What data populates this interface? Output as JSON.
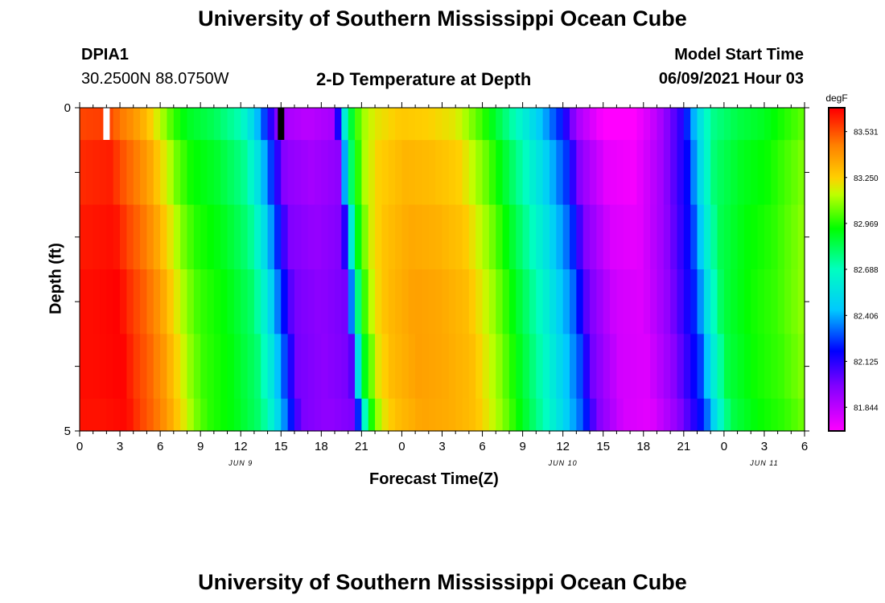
{
  "header": {
    "title": "University of Southern Mississippi Ocean Cube",
    "station_id": "DPIA1",
    "station_location": "30.2500N  88.0750W",
    "chart_title": "2-D Temperature at Depth",
    "model_start_label": "Model Start Time",
    "model_start_value": "06/09/2021 Hour 03"
  },
  "footer": {
    "title": "University of Southern Mississippi Ocean Cube"
  },
  "chart_data": {
    "type": "heatmap",
    "title": "2-D Temperature at Depth",
    "xlabel": "Forecast Time(Z)",
    "ylabel": "Depth (ft)",
    "x_range_hours": [
      0,
      54
    ],
    "y_range": [
      0,
      5
    ],
    "y_ticks": [
      "0",
      "5"
    ],
    "x_tick_labels": [
      "0",
      "3",
      "6",
      "9",
      "12",
      "15",
      "18",
      "21",
      "0",
      "3",
      "6",
      "9",
      "12",
      "15",
      "18",
      "21",
      "0",
      "3",
      "6"
    ],
    "date_labels": [
      {
        "label": "JUN 9",
        "hour": 12
      },
      {
        "label": "JUN 10",
        "hour": 36
      },
      {
        "label": "JUN 11",
        "hour": 51
      }
    ],
    "colorbar": {
      "unit": "degF",
      "min": 81.704,
      "max": 83.672,
      "tick_labels": [
        "83.531",
        "83.250",
        "82.969",
        "82.688",
        "82.406",
        "82.125",
        "81.844"
      ],
      "tick_values": [
        83.531,
        83.25,
        82.969,
        82.688,
        82.406,
        82.125,
        81.844
      ]
    },
    "depth_layers": [
      "0-0.5",
      "0.5-1.5",
      "1.5-2.5",
      "2.5-3.5",
      "3.5-4.5",
      "4.5-5"
    ],
    "color_stops": [
      {
        "v": 81.7,
        "color": "#ff00ff"
      },
      {
        "v": 81.98,
        "color": "#8000ff"
      },
      {
        "v": 82.19,
        "color": "#0000ff"
      },
      {
        "v": 82.44,
        "color": "#00c8ff"
      },
      {
        "v": 82.69,
        "color": "#00ffc0"
      },
      {
        "v": 82.94,
        "color": "#00ff00"
      },
      {
        "v": 83.15,
        "color": "#c0ff00"
      },
      {
        "v": 83.25,
        "color": "#ffd000"
      },
      {
        "v": 83.45,
        "color": "#ff8000"
      },
      {
        "v": 83.67,
        "color": "#ff0000"
      }
    ],
    "temperature_profile": [
      {
        "h": 0,
        "v": 83.6
      },
      {
        "h": 2,
        "v": 83.62
      },
      {
        "h": 3,
        "v": 83.52
      },
      {
        "h": 4,
        "v": 83.45
      },
      {
        "h": 5,
        "v": 83.35
      },
      {
        "h": 6,
        "v": 83.2
      },
      {
        "h": 7,
        "v": 83.05
      },
      {
        "h": 8,
        "v": 82.95
      },
      {
        "h": 10,
        "v": 82.88
      },
      {
        "h": 12,
        "v": 82.75
      },
      {
        "h": 13,
        "v": 82.55
      },
      {
        "h": 14,
        "v": 82.25
      },
      {
        "h": 15,
        "v": 81.95
      },
      {
        "h": 17,
        "v": 81.9
      },
      {
        "h": 19,
        "v": 81.95
      },
      {
        "h": 19.5,
        "v": 82.45
      },
      {
        "h": 20,
        "v": 82.85
      },
      {
        "h": 21,
        "v": 83.15
      },
      {
        "h": 22,
        "v": 83.25
      },
      {
        "h": 24,
        "v": 83.32
      },
      {
        "h": 26,
        "v": 83.3
      },
      {
        "h": 28,
        "v": 83.25
      },
      {
        "h": 30,
        "v": 83.05
      },
      {
        "h": 32,
        "v": 82.8
      },
      {
        "h": 34,
        "v": 82.55
      },
      {
        "h": 36,
        "v": 82.25
      },
      {
        "h": 37,
        "v": 81.95
      },
      {
        "h": 39,
        "v": 81.75
      },
      {
        "h": 41,
        "v": 81.72
      },
      {
        "h": 43,
        "v": 81.9
      },
      {
        "h": 45,
        "v": 82.2
      },
      {
        "h": 46,
        "v": 82.55
      },
      {
        "h": 47,
        "v": 82.8
      },
      {
        "h": 49,
        "v": 82.9
      },
      {
        "h": 51,
        "v": 82.95
      },
      {
        "h": 52,
        "v": 83.0
      },
      {
        "h": 54,
        "v": 83.1
      }
    ],
    "layer_offsets": [
      {
        "phase_shift": 0.0,
        "dv": -0.05
      },
      {
        "phase_shift": 0.3,
        "dv": 0.0
      },
      {
        "phase_shift": 0.6,
        "dv": 0.03
      },
      {
        "phase_shift": 0.9,
        "dv": 0.05
      },
      {
        "phase_shift": 1.2,
        "dv": 0.05
      },
      {
        "phase_shift": 1.5,
        "dv": 0.04
      }
    ],
    "markers": [
      {
        "hour": 2,
        "color": "#ffffff"
      },
      {
        "hour": 15,
        "color": "#000000"
      }
    ]
  }
}
